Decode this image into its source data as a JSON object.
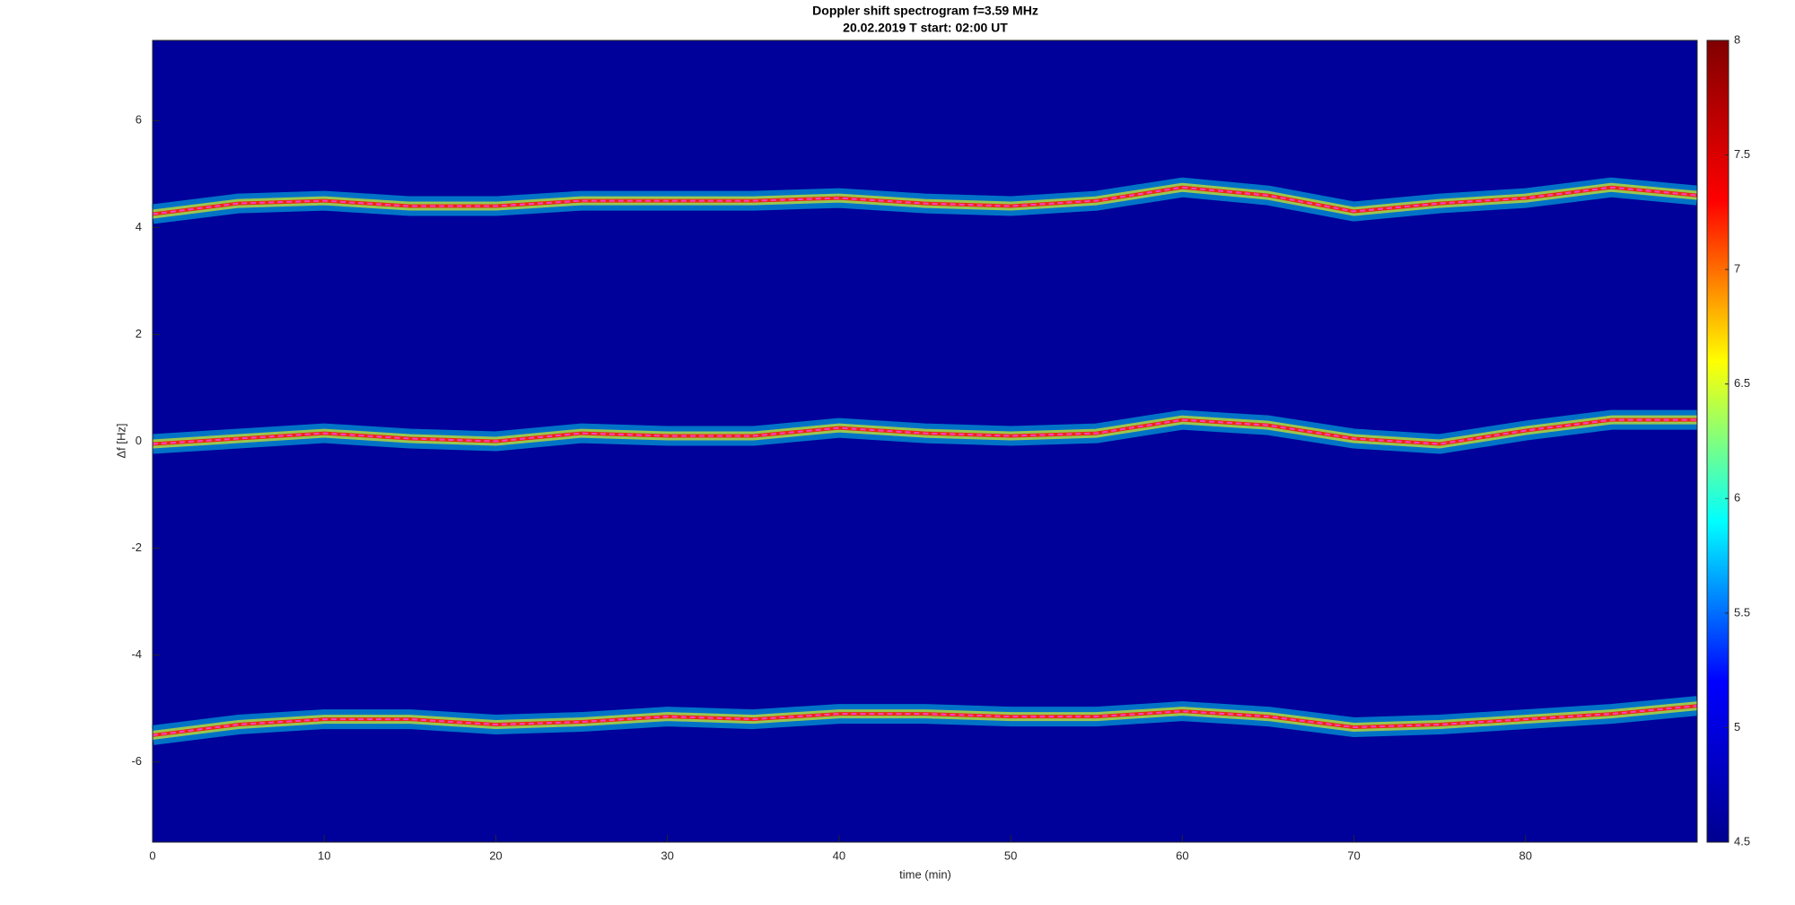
{
  "chart_data": {
    "type": "line",
    "title": "Doppler shift spectrogram f=3.59 MHz",
    "subtitle": "20.02.2019    T start: 02:00 UT",
    "x_label": "time (min)",
    "y_label": "Δf [Hz]",
    "x": [
      0,
      5,
      10,
      15,
      20,
      25,
      30,
      35,
      40,
      45,
      50,
      55,
      60,
      65,
      70,
      75,
      80,
      85,
      90
    ],
    "series": [
      {
        "color": "#ff40c0",
        "values": [
          4.25,
          4.45,
          4.5,
          4.4,
          4.4,
          4.5,
          4.5,
          4.5,
          4.55,
          4.45,
          4.4,
          4.5,
          4.75,
          4.6,
          4.3,
          4.45,
          4.55,
          4.75,
          4.6
        ]
      },
      {
        "color": "#ff40c0",
        "values": [
          -0.05,
          0.05,
          0.15,
          0.05,
          0.0,
          0.15,
          0.1,
          0.1,
          0.25,
          0.15,
          0.1,
          0.15,
          0.4,
          0.3,
          0.05,
          -0.05,
          0.2,
          0.4,
          0.4
        ]
      },
      {
        "color": "#ff40c0",
        "values": [
          -5.5,
          -5.3,
          -5.2,
          -5.2,
          -5.3,
          -5.25,
          -5.15,
          -5.2,
          -5.1,
          -5.1,
          -5.15,
          -5.15,
          -5.05,
          -5.15,
          -5.35,
          -5.3,
          -5.2,
          -5.1,
          -4.95
        ]
      }
    ],
    "xlim": [
      0,
      90
    ],
    "xticks": [
      0,
      10,
      20,
      30,
      40,
      50,
      60,
      70,
      80
    ],
    "ylim": [
      -7.5,
      7.5
    ],
    "yticks": [
      -6,
      -4,
      -2,
      0,
      2,
      4,
      6
    ],
    "clim": [
      4.5,
      8
    ],
    "cticks": [
      4.5,
      5,
      5.5,
      6,
      6.5,
      7,
      7.5,
      8
    ],
    "colormap": [
      "#00008f",
      "#0000ff",
      "#00ffff",
      "#ffff00",
      "#ff0000",
      "#800000"
    ],
    "background_color": "#00009a"
  }
}
